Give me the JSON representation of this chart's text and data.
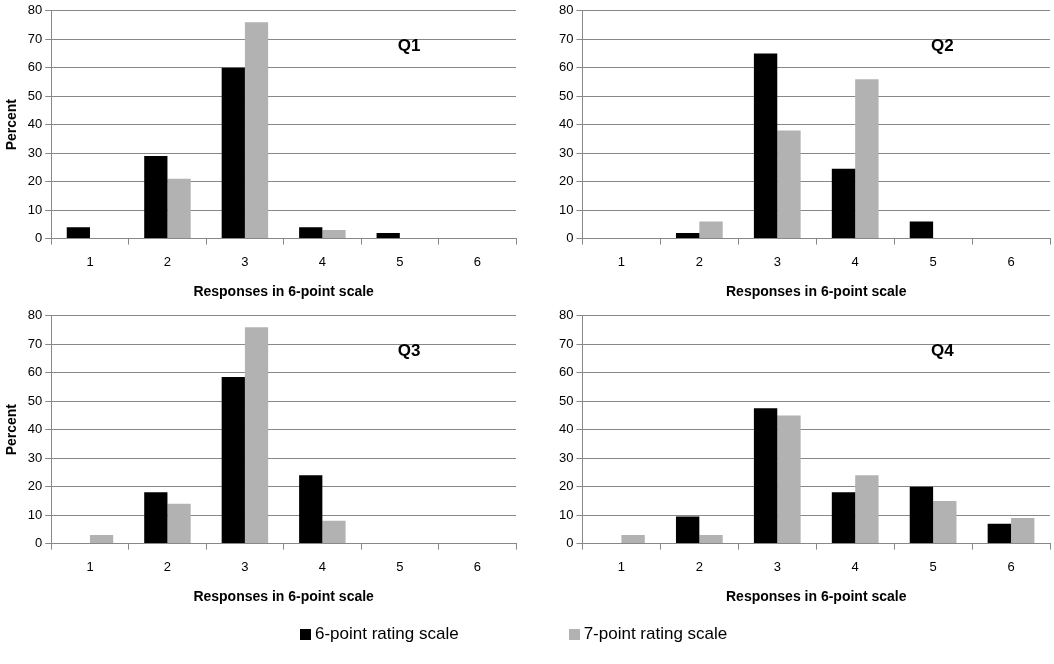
{
  "chart_data": [
    {
      "type": "bar",
      "categories": [
        "1",
        "2",
        "3",
        "4",
        "5",
        "6"
      ],
      "ylabel": "Percent",
      "xlabel": "Responses in 6-point scale",
      "annotations": [
        "Q1"
      ],
      "ylim": [
        0,
        80
      ],
      "yticks": [
        0,
        10,
        20,
        30,
        40,
        50,
        60,
        70,
        80
      ],
      "grid": "y",
      "series": [
        {
          "color": "#000000",
          "values": [
            4,
            29,
            60,
            4,
            2,
            0
          ]
        },
        {
          "color": "#b2b2b2",
          "values": [
            0,
            21,
            76,
            3,
            0,
            0
          ]
        }
      ]
    },
    {
      "type": "bar",
      "categories": [
        "1",
        "2",
        "3",
        "4",
        "5",
        "6"
      ],
      "xlabel": "Responses in 6-point scale",
      "annotations": [
        "Q2"
      ],
      "ylim": [
        0,
        80
      ],
      "yticks": [
        0,
        10,
        20,
        30,
        40,
        50,
        60,
        70,
        80
      ],
      "grid": "y",
      "series": [
        {
          "color": "#000000",
          "values": [
            0,
            2,
            65,
            24.5,
            6,
            0
          ]
        },
        {
          "color": "#b2b2b2",
          "values": [
            0,
            6,
            38,
            56,
            0,
            0
          ]
        }
      ]
    },
    {
      "type": "bar",
      "categories": [
        "1",
        "2",
        "3",
        "4",
        "5",
        "6"
      ],
      "ylabel": "Percent",
      "xlabel": "Responses in 6-point scale",
      "annotations": [
        "Q3"
      ],
      "ylim": [
        0,
        80
      ],
      "yticks": [
        0,
        10,
        20,
        30,
        40,
        50,
        60,
        70,
        80
      ],
      "grid": "y",
      "legend": "bottom",
      "series": [
        {
          "name": "6-point rating scale",
          "color": "#000000",
          "values": [
            0,
            18,
            58.5,
            24,
            0,
            0
          ]
        },
        {
          "name": "7-point rating scale",
          "color": "#b2b2b2",
          "values": [
            3,
            14,
            76,
            8,
            0,
            0
          ]
        }
      ]
    },
    {
      "type": "bar",
      "categories": [
        "1",
        "2",
        "3",
        "4",
        "5",
        "6"
      ],
      "xlabel": "Responses in 6-point scale",
      "annotations": [
        "Q4"
      ],
      "ylim": [
        0,
        80
      ],
      "yticks": [
        0,
        10,
        20,
        30,
        40,
        50,
        60,
        70,
        80
      ],
      "grid": "y",
      "series": [
        {
          "color": "#000000",
          "values": [
            0,
            9.5,
            47.5,
            18,
            20,
            7
          ]
        },
        {
          "color": "#b2b2b2",
          "values": [
            3,
            3,
            45,
            24,
            15,
            9
          ]
        }
      ]
    }
  ]
}
